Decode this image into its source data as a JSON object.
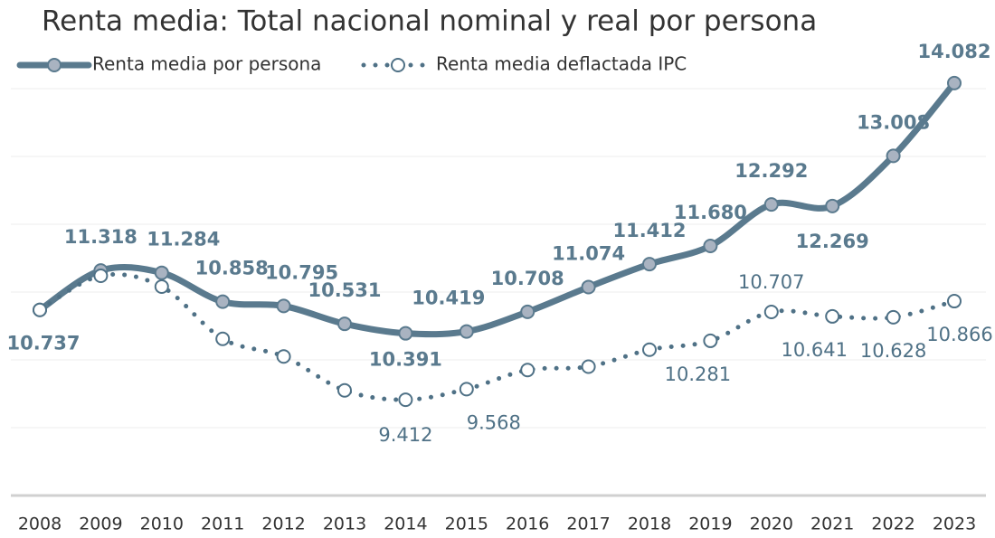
{
  "chart_data": {
    "type": "line",
    "title": "Renta media: Total nacional nominal y real por persona",
    "categories": [
      "2008",
      "2009",
      "2010",
      "2011",
      "2012",
      "2013",
      "2014",
      "2015",
      "2016",
      "2017",
      "2018",
      "2019",
      "2020",
      "2021",
      "2022",
      "2023"
    ],
    "series": [
      {
        "name": "Renta media por persona",
        "color": "#5a7a8e",
        "values": [
          10737,
          11318,
          11284,
          10858,
          10795,
          10531,
          10391,
          10419,
          10708,
          11074,
          11412,
          11680,
          12292,
          12269,
          13008,
          14082
        ],
        "value_labels": [
          "10.737",
          "11.318",
          "11.284",
          "10.858",
          "10.795",
          "10.531",
          "10.391",
          "10.419",
          "10.708",
          "11.074",
          "11.412",
          "11.680",
          "12.292",
          "12.269",
          "13.008",
          "14.082"
        ]
      },
      {
        "name": "Renta media deflactada IPC",
        "color": "#4f7186",
        "values": [
          10737,
          11240,
          11080,
          10310,
          10050,
          9550,
          9412,
          9568,
          9850,
          9900,
          10150,
          10281,
          10707,
          10641,
          10628,
          10866
        ],
        "value_labels": [
          null,
          null,
          null,
          null,
          null,
          null,
          "9.412",
          "9.568",
          null,
          null,
          null,
          "10.281",
          "10.707",
          "10.641",
          "10.628",
          "10.866"
        ]
      }
    ],
    "ylim": [
      8000,
      15000
    ],
    "yticks": [
      8000,
      9000,
      10000,
      11000,
      12000,
      13000,
      14000
    ],
    "grid": true
  }
}
